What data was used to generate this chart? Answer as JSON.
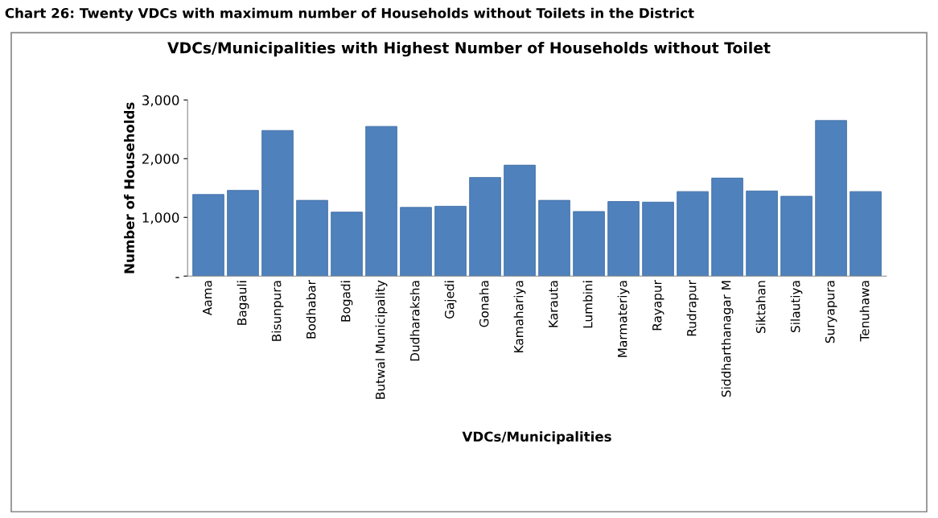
{
  "chart_data": {
    "type": "bar",
    "title": "VDCs/Municipalities with Highest Number of Households without Toilet",
    "annotations": [
      "Chart 26: Twenty VDCs with maximum number of Households without Toilets in the District"
    ],
    "xlabel": "VDCs/Municipalities",
    "ylabel": "Number of Households",
    "categories": [
      "Aama",
      "Bagauli",
      "Bisunpura",
      "Bodhabar",
      "Bogadi",
      "Butwal Municipality",
      "Dudharaksha",
      "Gajedi",
      "Gonaha",
      "Kamahariya",
      "Karauta",
      "Lumbini",
      "Marmateriya",
      "Rayapur",
      "Rudrapur",
      "Siddharthanagar M",
      "Siktahan",
      "Silautiya",
      "Suryapura",
      "Tenuhawa"
    ],
    "values": [
      1390,
      1460,
      2480,
      1290,
      1090,
      2550,
      1170,
      1190,
      1680,
      1890,
      1290,
      1100,
      1270,
      1260,
      1440,
      1670,
      1450,
      1360,
      2650,
      1440
    ],
    "color": "#4f81bd",
    "ylim": [
      0,
      3000
    ],
    "yticks": [
      {
        "value": 0,
        "label": "-"
      },
      {
        "value": 1000,
        "label": "1,000"
      },
      {
        "value": 2000,
        "label": "2,000"
      },
      {
        "value": 3000,
        "label": "3,000"
      }
    ],
    "grid": false,
    "legend": false
  }
}
